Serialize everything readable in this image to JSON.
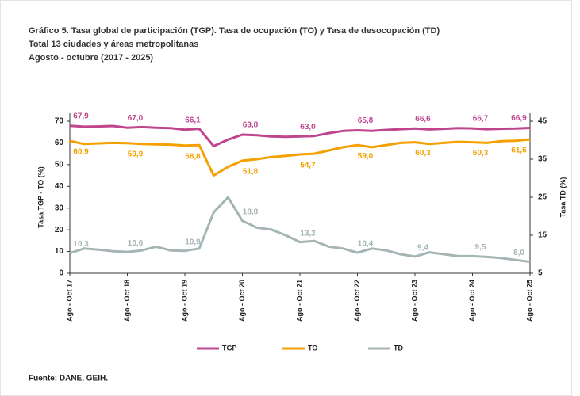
{
  "chart_data": {
    "type": "line",
    "title": "Gráfico 5. Tasa global de participación (TGP). Tasa de ocupación (TO) y Tasa de desocupación (TD)",
    "subtitle": [
      "Total 13 ciudades y áreas metropolitanas",
      "Agosto - octubre (2017 - 2025)"
    ],
    "ylabel": "Tasa TGP - TO (%)",
    "y2label": "Tasa TD (%)",
    "source": "Fuente: DANE, GEIH.",
    "categories": [
      "Ago - Oct 17",
      null,
      null,
      null,
      "Ago - Oct 18",
      null,
      null,
      null,
      "Ago - Oct 19",
      null,
      null,
      null,
      "Ago - Oct 20",
      null,
      null,
      null,
      "Ago - Oct 21",
      null,
      null,
      null,
      "Ago - Oct 22",
      null,
      null,
      null,
      "Ago - Oct 23",
      null,
      null,
      null,
      "Ago - Oct 24",
      null,
      null,
      null,
      "Ago - Oct 25"
    ],
    "ylim": [
      0,
      70
    ],
    "yticks": [
      0,
      10,
      20,
      30,
      40,
      50,
      60,
      70
    ],
    "y2lim": [
      5,
      45
    ],
    "y2ticks": [
      5,
      15,
      25,
      35,
      45
    ],
    "legend": "bottom",
    "series": [
      {
        "name": "TGP",
        "color": "#c0458f",
        "values": [
          67.9,
          67.5,
          67.6,
          67.8,
          67.0,
          67.3,
          67.0,
          66.8,
          66.1,
          66.5,
          58.5,
          61.5,
          63.8,
          63.5,
          63.0,
          62.8,
          63.0,
          63.2,
          64.5,
          65.5,
          65.8,
          65.5,
          66.0,
          66.3,
          66.6,
          66.2,
          66.5,
          66.8,
          66.7,
          66.3,
          66.5,
          66.6,
          66.9
        ],
        "value_labels": [
          "67,9",
          null,
          null,
          null,
          "67,0",
          null,
          null,
          null,
          "66,1",
          null,
          null,
          null,
          "63,8",
          null,
          null,
          null,
          "63,0",
          null,
          null,
          null,
          "65,8",
          null,
          null,
          null,
          "66,6",
          null,
          null,
          null,
          "66,7",
          null,
          null,
          null,
          "66,9"
        ]
      },
      {
        "name": "TO",
        "color": "#f5a000",
        "values": [
          60.9,
          59.5,
          59.8,
          60.0,
          59.9,
          59.5,
          59.3,
          59.2,
          58.8,
          59.0,
          45.0,
          49.0,
          51.8,
          52.5,
          53.5,
          54.0,
          54.7,
          55.0,
          56.5,
          58.0,
          59.0,
          58.0,
          59.0,
          60.0,
          60.3,
          59.5,
          60.0,
          60.5,
          60.3,
          60.0,
          60.8,
          61.0,
          61.6
        ],
        "value_labels": [
          "60,9",
          null,
          null,
          null,
          "59,9",
          null,
          null,
          null,
          "58,8",
          null,
          null,
          null,
          "51,8",
          null,
          null,
          null,
          "54,7",
          null,
          null,
          null,
          "59,0",
          null,
          null,
          null,
          "60,3",
          null,
          null,
          null,
          "60,3",
          null,
          null,
          null,
          "61,6"
        ]
      },
      {
        "name": "TD",
        "color": "#a5b5b5",
        "axis": "y2",
        "values": [
          10.3,
          11.5,
          11.2,
          10.8,
          10.6,
          11.0,
          12.0,
          11.0,
          10.9,
          11.5,
          21.0,
          25.0,
          18.8,
          17.0,
          16.5,
          15.0,
          13.2,
          13.5,
          12.0,
          11.5,
          10.4,
          11.5,
          11.0,
          10.0,
          9.4,
          10.5,
          10.0,
          9.5,
          9.5,
          9.3,
          9.0,
          8.5,
          8.0
        ],
        "value_labels": [
          "10,3",
          null,
          null,
          null,
          "10,6",
          null,
          null,
          null,
          "10,9",
          null,
          null,
          null,
          "18,8",
          null,
          null,
          null,
          "13,2",
          null,
          null,
          null,
          "10,4",
          null,
          null,
          null,
          "9,4",
          null,
          null,
          null,
          "9,5",
          null,
          null,
          null,
          "8,0"
        ]
      }
    ]
  }
}
